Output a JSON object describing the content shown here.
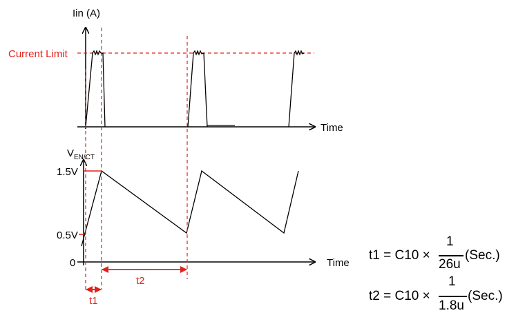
{
  "colors": {
    "accent": "#e0201b",
    "trace": "#000000"
  },
  "top_plot": {
    "y_axis_label": "Iin (A)",
    "x_axis_label": "Time",
    "limit_label": "Current Limit"
  },
  "bottom_plot": {
    "y_axis_label_main": "V",
    "y_axis_label_sub": "EN/CT",
    "x_axis_label": "Time",
    "ticks": [
      "1.5V",
      "0.5V",
      "0"
    ]
  },
  "intervals": {
    "t1": "t1",
    "t2": "t2"
  },
  "equations": {
    "eq1": {
      "lhs": "t1 = C10 ×",
      "numerator": "1",
      "denominator": "26u",
      "suffix": "(Sec.)"
    },
    "eq2": {
      "lhs": "t2 = C10 ×",
      "numerator": "1",
      "denominator": "1.8u",
      "suffix": "(Sec.)"
    }
  }
}
